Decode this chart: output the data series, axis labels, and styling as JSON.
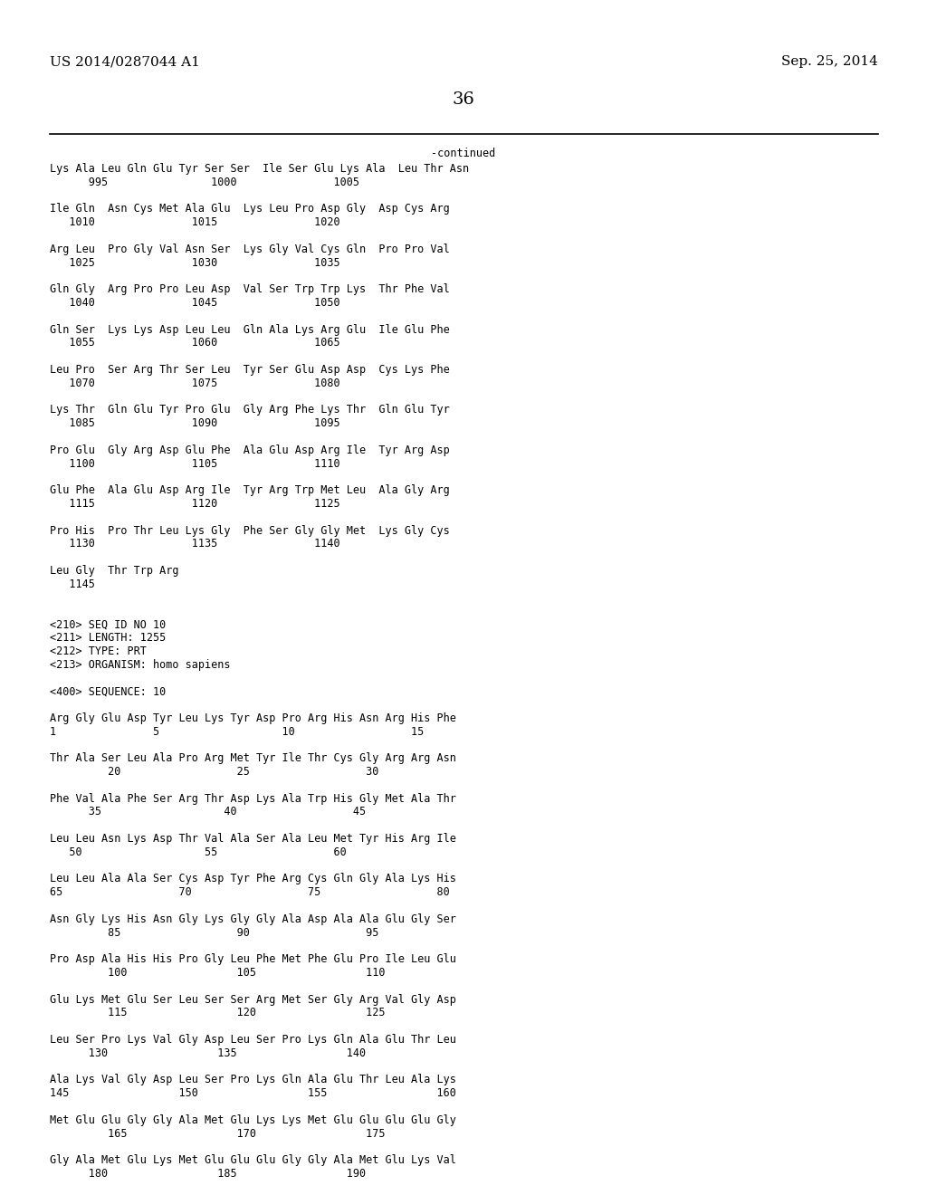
{
  "page_left": "US 2014/0287044 A1",
  "page_right": "Sep. 25, 2014",
  "page_number": "36",
  "continued_label": "-continued",
  "background_color": "#ffffff",
  "text_color": "#000000",
  "font_size_header": 11,
  "font_size_body": 8.5,
  "font_size_page_num": 14,
  "content_lines": [
    "Lys Ala Leu Gln Glu Tyr Ser Ser  Ile Ser Glu Lys Ala  Leu Thr Asn",
    "      995                1000               1005",
    "",
    "Ile Gln  Asn Cys Met Ala Glu  Lys Leu Pro Asp Gly  Asp Cys Arg",
    "   1010               1015               1020",
    "",
    "Arg Leu  Pro Gly Val Asn Ser  Lys Gly Val Cys Gln  Pro Pro Val",
    "   1025               1030               1035",
    "",
    "Gln Gly  Arg Pro Pro Leu Asp  Val Ser Trp Trp Lys  Thr Phe Val",
    "   1040               1045               1050",
    "",
    "Gln Ser  Lys Lys Asp Leu Leu  Gln Ala Lys Arg Glu  Ile Glu Phe",
    "   1055               1060               1065",
    "",
    "Leu Pro  Ser Arg Thr Ser Leu  Tyr Ser Glu Asp Asp  Cys Lys Phe",
    "   1070               1075               1080",
    "",
    "Lys Thr  Gln Glu Tyr Pro Glu  Gly Arg Phe Lys Thr  Gln Glu Tyr",
    "   1085               1090               1095",
    "",
    "Pro Glu  Gly Arg Asp Glu Phe  Ala Glu Asp Arg Ile  Tyr Arg Asp",
    "   1100               1105               1110",
    "",
    "Glu Phe  Ala Glu Asp Arg Ile  Tyr Arg Trp Met Leu  Ala Gly Arg",
    "   1115               1120               1125",
    "",
    "Pro His  Pro Thr Leu Lys Gly  Phe Ser Gly Gly Met  Lys Gly Cys",
    "   1130               1135               1140",
    "",
    "Leu Gly  Thr Trp Arg",
    "   1145",
    "",
    "",
    "<210> SEQ ID NO 10",
    "<211> LENGTH: 1255",
    "<212> TYPE: PRT",
    "<213> ORGANISM: homo sapiens",
    "",
    "<400> SEQUENCE: 10",
    "",
    "Arg Gly Glu Asp Tyr Leu Lys Tyr Asp Pro Arg His Asn Arg His Phe",
    "1               5                   10                  15",
    "",
    "Thr Ala Ser Leu Ala Pro Arg Met Tyr Ile Thr Cys Gly Arg Arg Asn",
    "         20                  25                  30",
    "",
    "Phe Val Ala Phe Ser Arg Thr Asp Lys Ala Trp His Gly Met Ala Thr",
    "      35                   40                  45",
    "",
    "Leu Leu Asn Lys Asp Thr Val Ala Ser Ala Leu Met Tyr His Arg Ile",
    "   50                   55                  60",
    "",
    "Leu Leu Ala Ala Ser Cys Asp Tyr Phe Arg Cys Gln Gly Ala Lys His",
    "65                  70                  75                  80",
    "",
    "Asn Gly Lys His Asn Gly Lys Gly Gly Ala Asp Ala Ala Glu Gly Ser",
    "         85                  90                  95",
    "",
    "Pro Asp Ala His His Pro Gly Leu Phe Met Phe Glu Pro Ile Leu Glu",
    "         100                 105                 110",
    "",
    "Glu Lys Met Glu Ser Leu Ser Ser Arg Met Ser Gly Arg Val Gly Asp",
    "         115                 120                 125",
    "",
    "Leu Ser Pro Lys Val Gly Asp Leu Ser Pro Lys Gln Ala Glu Thr Leu",
    "      130                 135                 140",
    "",
    "Ala Lys Val Gly Asp Leu Ser Pro Lys Gln Ala Glu Thr Leu Ala Lys",
    "145                 150                 155                 160",
    "",
    "Met Glu Glu Gly Gly Ala Met Glu Lys Lys Met Glu Glu Glu Glu Gly",
    "         165                 170                 175",
    "",
    "Gly Ala Met Glu Lys Met Glu Glu Glu Gly Gly Ala Met Glu Lys Val",
    "      180                 185                 190"
  ]
}
